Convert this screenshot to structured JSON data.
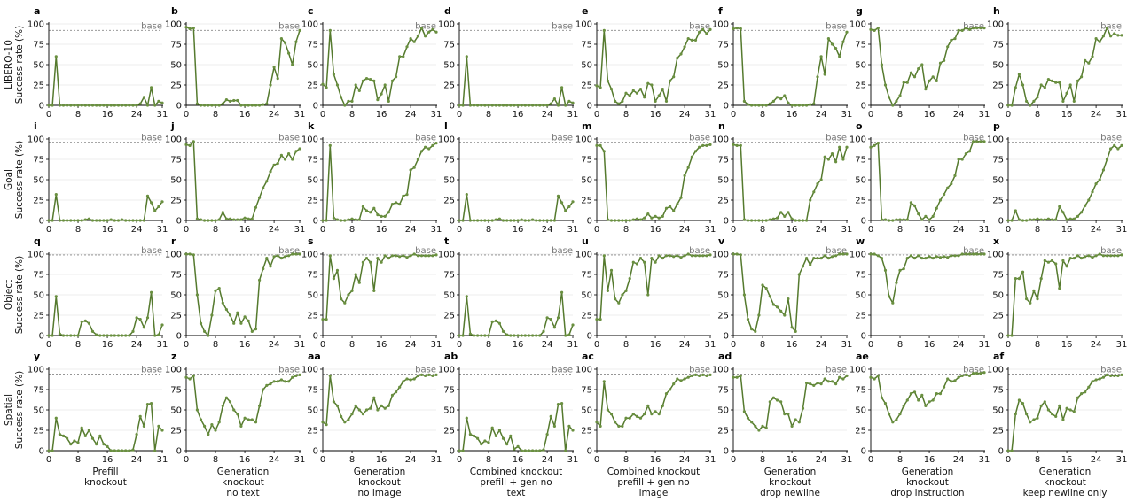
{
  "figure": {
    "row_labels": [
      [
        "LIBERO-10",
        "Success rate (%)"
      ],
      [
        "Goal",
        "Success rate (%)"
      ],
      [
        "Object",
        "Success rate (%)"
      ],
      [
        "Spatial",
        "Success rate (%)"
      ]
    ],
    "column_labels": [
      [
        "Prefill",
        "knockout"
      ],
      [
        "Generation",
        "knockout",
        "no text"
      ],
      [
        "Generation",
        "knockout",
        "no image"
      ],
      [
        "Combined knockout",
        "prefill + gen no",
        "text"
      ],
      [
        "Combined knockout",
        "prefill + gen no",
        "image"
      ],
      [
        "Generation",
        "knockout",
        "drop newline"
      ],
      [
        "Generation",
        "knockout",
        "drop instruction"
      ],
      [
        "Generation",
        "knockout",
        "keep newline only"
      ]
    ],
    "panel_letters": [
      "a",
      "b",
      "c",
      "d",
      "e",
      "f",
      "g",
      "h",
      "i",
      "j",
      "k",
      "l",
      "m",
      "n",
      "o",
      "p",
      "q",
      "r",
      "s",
      "t",
      "u",
      "v",
      "w",
      "x",
      "y",
      "z",
      "aa",
      "ab",
      "ac",
      "ad",
      "ae",
      "af"
    ],
    "baseline_label": "base",
    "line_color": "#557a2e",
    "marker_color": "#6a9040",
    "baseline_color": "#888888"
  },
  "chart_data": {
    "type": "line",
    "x": [
      0,
      1,
      2,
      3,
      4,
      5,
      6,
      7,
      8,
      9,
      10,
      11,
      12,
      13,
      14,
      15,
      16,
      17,
      18,
      19,
      20,
      21,
      22,
      23,
      24,
      25,
      26,
      27,
      28,
      29,
      30,
      31
    ],
    "xticks": [
      0,
      8,
      16,
      24,
      31
    ],
    "yticks": [
      0,
      25,
      50,
      75,
      100
    ],
    "ylim": [
      0,
      100
    ],
    "baselines": [
      92,
      96,
      99,
      94
    ],
    "panels": [
      {
        "letter": "a",
        "values": [
          0,
          0,
          60,
          0,
          0,
          0,
          0,
          0,
          0,
          0,
          0,
          0,
          0,
          0,
          0,
          0,
          0,
          0,
          0,
          0,
          0,
          0,
          0,
          0,
          0,
          2,
          10,
          0,
          22,
          0,
          5,
          3
        ]
      },
      {
        "letter": "b",
        "values": [
          96,
          94,
          95,
          2,
          0,
          0,
          0,
          0,
          0,
          0,
          2,
          7,
          5,
          6,
          6,
          0,
          0,
          0,
          0,
          0,
          0,
          1,
          2,
          25,
          47,
          33,
          82,
          77,
          64,
          50,
          78,
          92
        ]
      },
      {
        "letter": "c",
        "values": [
          26,
          22,
          92,
          38,
          25,
          10,
          0,
          5,
          5,
          25,
          18,
          30,
          33,
          32,
          30,
          7,
          14,
          25,
          5,
          30,
          35,
          60,
          60,
          72,
          82,
          78,
          85,
          95,
          85,
          90,
          93,
          90
        ]
      },
      {
        "letter": "d",
        "values": [
          0,
          0,
          60,
          0,
          0,
          0,
          0,
          0,
          0,
          0,
          0,
          0,
          0,
          0,
          0,
          0,
          0,
          0,
          0,
          0,
          0,
          0,
          0,
          0,
          0,
          2,
          8,
          0,
          22,
          0,
          5,
          3
        ]
      },
      {
        "letter": "e",
        "values": [
          24,
          22,
          92,
          30,
          20,
          5,
          2,
          5,
          15,
          12,
          18,
          15,
          20,
          10,
          27,
          25,
          5,
          12,
          20,
          5,
          30,
          35,
          58,
          63,
          72,
          82,
          80,
          80,
          90,
          93,
          88,
          93
        ]
      },
      {
        "letter": "f",
        "values": [
          94,
          95,
          94,
          5,
          1,
          0,
          0,
          0,
          0,
          0,
          2,
          5,
          10,
          8,
          12,
          3,
          0,
          0,
          0,
          0,
          0,
          1,
          2,
          35,
          60,
          38,
          82,
          75,
          70,
          60,
          78,
          90
        ]
      },
      {
        "letter": "g",
        "values": [
          93,
          92,
          95,
          50,
          25,
          10,
          0,
          5,
          12,
          28,
          28,
          40,
          35,
          45,
          50,
          20,
          30,
          35,
          30,
          52,
          55,
          72,
          80,
          82,
          92,
          92,
          95,
          93,
          95,
          95,
          95,
          95
        ]
      },
      {
        "letter": "h",
        "values": [
          0,
          0,
          22,
          38,
          25,
          5,
          0,
          5,
          10,
          25,
          22,
          32,
          30,
          28,
          28,
          5,
          15,
          25,
          5,
          30,
          35,
          55,
          52,
          60,
          82,
          78,
          85,
          95,
          85,
          88,
          86,
          86
        ]
      },
      {
        "letter": "i",
        "values": [
          0,
          0,
          32,
          0,
          0,
          0,
          0,
          0,
          0,
          0,
          1,
          2,
          0,
          0,
          0,
          0,
          0,
          1,
          0,
          0,
          1,
          0,
          0,
          0,
          0,
          0,
          0,
          30,
          22,
          12,
          17,
          23
        ]
      },
      {
        "letter": "j",
        "values": [
          93,
          92,
          97,
          2,
          1,
          0,
          0,
          0,
          0,
          1,
          10,
          2,
          2,
          1,
          1,
          1,
          3,
          2,
          2,
          16,
          28,
          40,
          48,
          60,
          68,
          70,
          80,
          75,
          82,
          75,
          85,
          88
        ]
      },
      {
        "letter": "k",
        "values": [
          0,
          0,
          92,
          3,
          1,
          0,
          0,
          1,
          2,
          1,
          1,
          17,
          12,
          10,
          15,
          7,
          5,
          5,
          10,
          20,
          22,
          20,
          30,
          32,
          62,
          65,
          75,
          85,
          90,
          88,
          92,
          95
        ]
      },
      {
        "letter": "l",
        "values": [
          0,
          0,
          32,
          0,
          0,
          0,
          0,
          0,
          0,
          0,
          1,
          2,
          0,
          0,
          0,
          0,
          0,
          1,
          0,
          0,
          1,
          0,
          0,
          0,
          0,
          0,
          0,
          30,
          22,
          12,
          17,
          23
        ]
      },
      {
        "letter": "m",
        "values": [
          92,
          92,
          85,
          1,
          0,
          0,
          0,
          0,
          0,
          0,
          1,
          2,
          1,
          3,
          8,
          3,
          5,
          3,
          5,
          15,
          17,
          12,
          20,
          28,
          55,
          65,
          78,
          85,
          90,
          92,
          92,
          93
        ]
      },
      {
        "letter": "n",
        "values": [
          93,
          92,
          92,
          1,
          0,
          0,
          0,
          0,
          0,
          0,
          1,
          2,
          3,
          10,
          5,
          10,
          2,
          0,
          0,
          0,
          0,
          25,
          35,
          45,
          50,
          78,
          75,
          82,
          72,
          90,
          75,
          90
        ]
      },
      {
        "letter": "o",
        "values": [
          90,
          92,
          95,
          1,
          1,
          0,
          0,
          1,
          1,
          1,
          1,
          22,
          18,
          8,
          1,
          5,
          1,
          5,
          15,
          25,
          32,
          40,
          45,
          55,
          75,
          75,
          82,
          85,
          97,
          97,
          97,
          97
        ]
      },
      {
        "letter": "p",
        "values": [
          0,
          0,
          12,
          1,
          0,
          0,
          1,
          1,
          2,
          1,
          1,
          2,
          1,
          1,
          17,
          10,
          1,
          2,
          2,
          5,
          10,
          18,
          25,
          35,
          45,
          50,
          62,
          75,
          88,
          92,
          88,
          92
        ]
      },
      {
        "letter": "q",
        "values": [
          0,
          0,
          48,
          2,
          0,
          0,
          0,
          0,
          0,
          17,
          18,
          15,
          5,
          1,
          0,
          0,
          0,
          0,
          0,
          0,
          0,
          0,
          0,
          5,
          22,
          20,
          10,
          22,
          53,
          0,
          1,
          13
        ]
      },
      {
        "letter": "r",
        "values": [
          100,
          100,
          99,
          50,
          15,
          5,
          0,
          25,
          55,
          58,
          40,
          32,
          25,
          15,
          28,
          15,
          23,
          18,
          5,
          8,
          68,
          82,
          95,
          85,
          97,
          98,
          95,
          97,
          98,
          100,
          100,
          100
        ]
      },
      {
        "letter": "s",
        "values": [
          20,
          20,
          98,
          70,
          80,
          45,
          40,
          50,
          55,
          75,
          65,
          90,
          95,
          90,
          55,
          95,
          90,
          98,
          95,
          98,
          98,
          97,
          98,
          96,
          98,
          100,
          98,
          98,
          98,
          98,
          98,
          99
        ]
      },
      {
        "letter": "t",
        "values": [
          0,
          0,
          48,
          2,
          0,
          0,
          0,
          0,
          0,
          17,
          18,
          15,
          5,
          1,
          0,
          0,
          0,
          0,
          0,
          0,
          0,
          0,
          0,
          5,
          22,
          20,
          10,
          22,
          53,
          0,
          1,
          13
        ]
      },
      {
        "letter": "u",
        "values": [
          20,
          20,
          98,
          55,
          80,
          45,
          40,
          50,
          55,
          70,
          90,
          88,
          95,
          90,
          50,
          95,
          90,
          98,
          95,
          98,
          98,
          97,
          98,
          96,
          98,
          100,
          98,
          98,
          98,
          98,
          98,
          99
        ]
      },
      {
        "letter": "v",
        "values": [
          100,
          100,
          99,
          50,
          20,
          8,
          5,
          25,
          62,
          58,
          48,
          38,
          35,
          30,
          25,
          45,
          10,
          5,
          75,
          85,
          95,
          87,
          95,
          95,
          95,
          98,
          95,
          97,
          98,
          100,
          100,
          100
        ]
      },
      {
        "letter": "w",
        "values": [
          100,
          100,
          98,
          95,
          80,
          48,
          40,
          65,
          80,
          82,
          95,
          98,
          95,
          98,
          95,
          95,
          97,
          95,
          97,
          96,
          97,
          96,
          98,
          98,
          98,
          100,
          100,
          100,
          100,
          100,
          100,
          100
        ]
      },
      {
        "letter": "x",
        "values": [
          0,
          0,
          70,
          70,
          78,
          45,
          40,
          55,
          45,
          70,
          92,
          90,
          92,
          88,
          58,
          92,
          85,
          95,
          95,
          98,
          95,
          97,
          98,
          96,
          98,
          100,
          98,
          98,
          98,
          98,
          98,
          99
        ]
      },
      {
        "letter": "y",
        "values": [
          0,
          0,
          40,
          20,
          18,
          15,
          8,
          12,
          10,
          28,
          18,
          25,
          15,
          8,
          18,
          8,
          5,
          0,
          0,
          0,
          0,
          0,
          0,
          1,
          20,
          42,
          30,
          57,
          58,
          0,
          30,
          25
        ]
      },
      {
        "letter": "z",
        "values": [
          90,
          88,
          92,
          50,
          38,
          30,
          20,
          32,
          25,
          35,
          55,
          65,
          60,
          50,
          45,
          30,
          40,
          38,
          38,
          35,
          55,
          75,
          80,
          82,
          85,
          85,
          87,
          85,
          85,
          90,
          92,
          93
        ]
      },
      {
        "letter": "aa",
        "values": [
          35,
          32,
          92,
          60,
          55,
          42,
          35,
          38,
          45,
          55,
          50,
          45,
          50,
          52,
          65,
          50,
          55,
          52,
          55,
          68,
          72,
          78,
          85,
          88,
          87,
          88,
          92,
          93,
          92,
          93,
          92,
          93
        ]
      },
      {
        "letter": "ab",
        "values": [
          0,
          0,
          40,
          20,
          18,
          15,
          8,
          12,
          10,
          28,
          18,
          25,
          15,
          8,
          18,
          2,
          5,
          0,
          0,
          0,
          0,
          0,
          0,
          1,
          20,
          42,
          30,
          57,
          58,
          0,
          30,
          25
        ]
      },
      {
        "letter": "ac",
        "values": [
          35,
          30,
          85,
          50,
          45,
          35,
          30,
          30,
          40,
          40,
          45,
          42,
          40,
          45,
          55,
          45,
          48,
          45,
          55,
          70,
          75,
          82,
          88,
          86,
          88,
          90,
          92,
          93,
          92,
          93,
          92,
          93
        ]
      },
      {
        "letter": "ad",
        "values": [
          90,
          90,
          92,
          48,
          40,
          35,
          30,
          25,
          30,
          28,
          60,
          65,
          62,
          60,
          45,
          45,
          30,
          38,
          35,
          52,
          83,
          82,
          80,
          83,
          82,
          88,
          85,
          85,
          82,
          90,
          88,
          92
        ]
      },
      {
        "letter": "ae",
        "values": [
          90,
          88,
          92,
          65,
          58,
          45,
          35,
          38,
          45,
          55,
          62,
          70,
          72,
          62,
          68,
          55,
          60,
          62,
          70,
          70,
          78,
          88,
          85,
          86,
          90,
          92,
          93,
          92,
          95,
          95,
          95,
          96
        ]
      },
      {
        "letter": "af",
        "values": [
          0,
          0,
          45,
          62,
          58,
          45,
          35,
          38,
          40,
          55,
          60,
          50,
          45,
          42,
          55,
          38,
          52,
          50,
          48,
          65,
          70,
          72,
          78,
          85,
          87,
          88,
          90,
          93,
          92,
          92,
          92,
          93
        ]
      }
    ]
  }
}
